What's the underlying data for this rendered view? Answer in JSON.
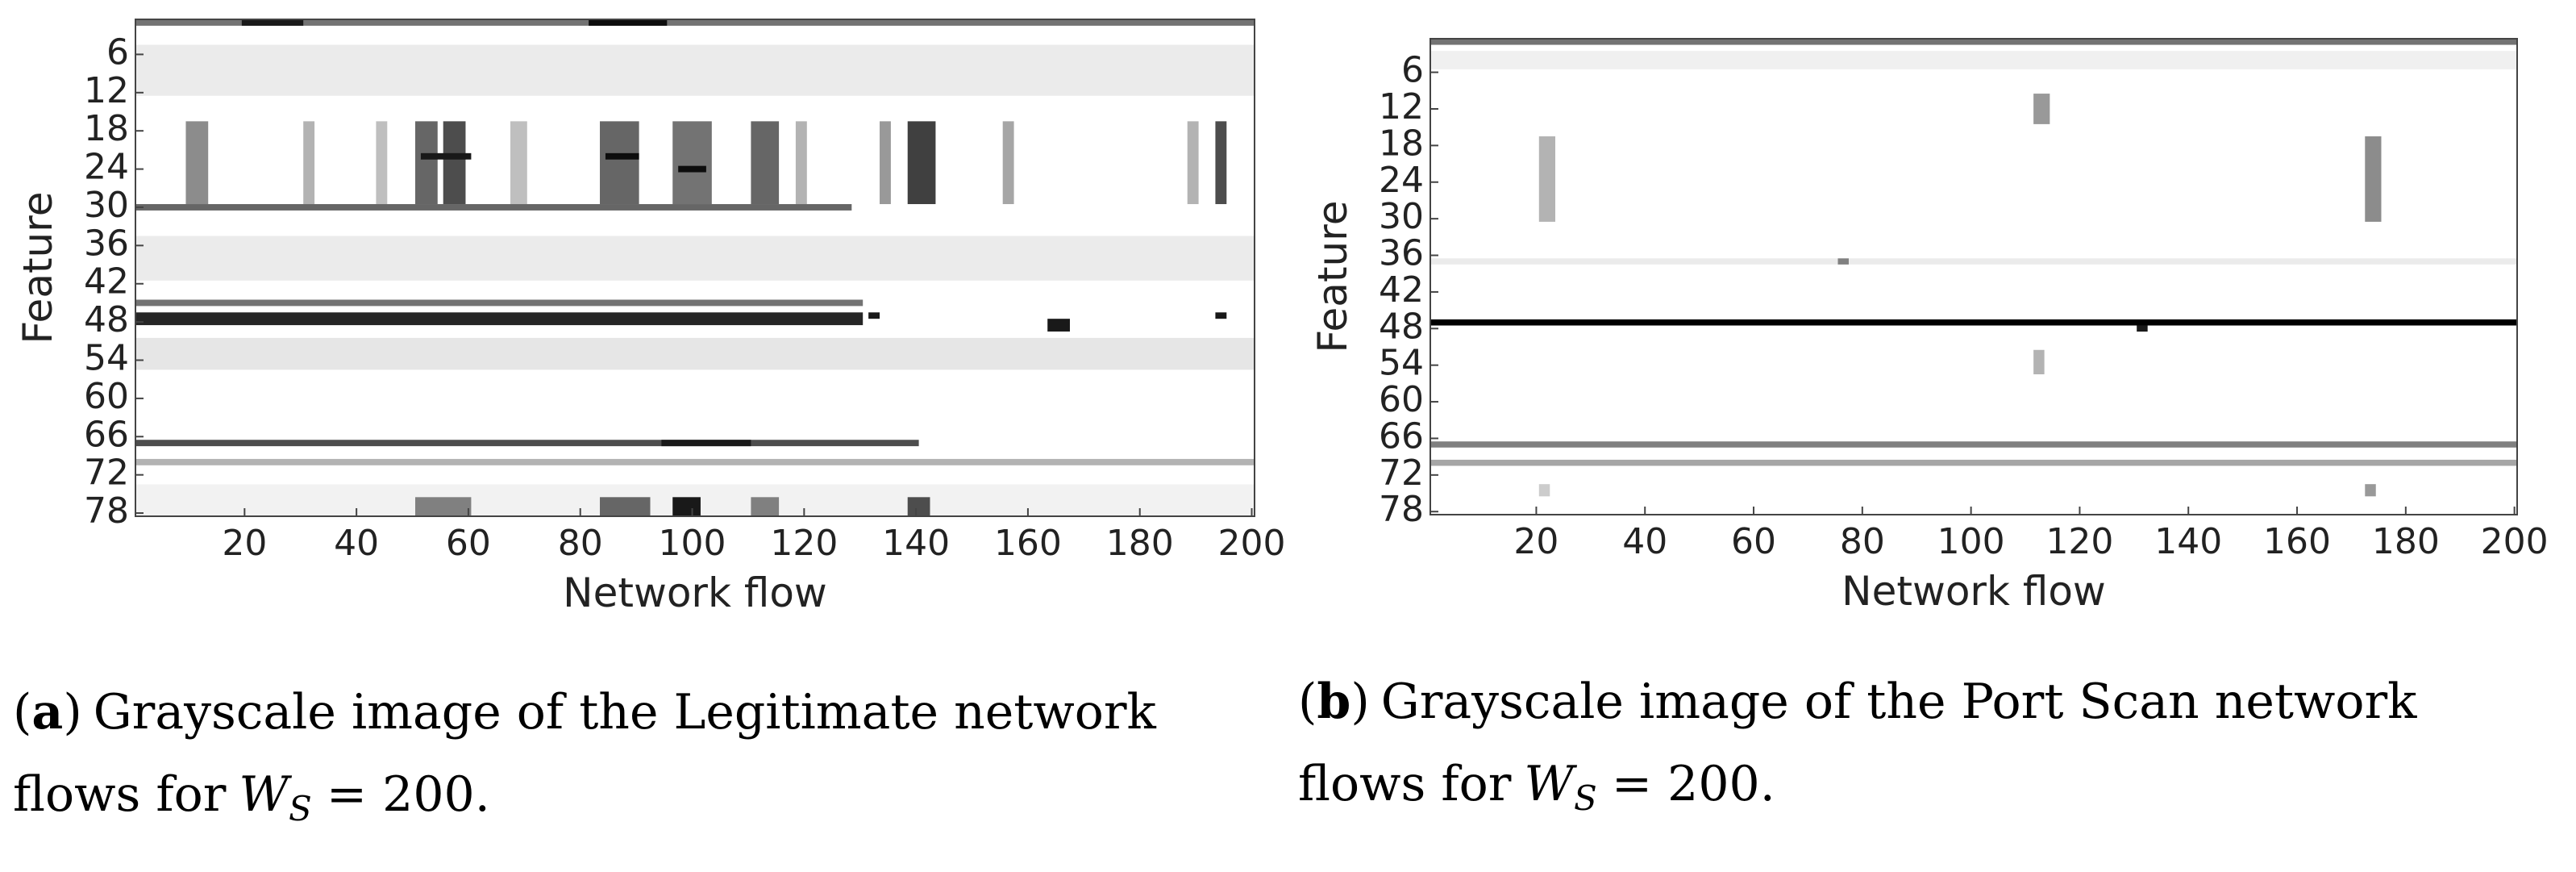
{
  "chart_data": [
    {
      "type": "heatmap",
      "xlabel": "Network flow",
      "ylabel": "Feature",
      "xlim": [
        0.5,
        200.5
      ],
      "ylim": [
        0.5,
        78.5
      ],
      "xticks": [
        20,
        40,
        60,
        80,
        100,
        120,
        140,
        160,
        180,
        200
      ],
      "yticks": [
        6,
        12,
        18,
        24,
        30,
        36,
        42,
        48,
        54,
        60,
        66,
        72,
        78
      ],
      "rects": {
        "flow_from": [
          1,
          82,
          20,
          1,
          10,
          51,
          56,
          84,
          97,
          111,
          119,
          134,
          139,
          156,
          189,
          194,
          31,
          44,
          68,
          85,
          98,
          52,
          1,
          1,
          1,
          1,
          132,
          164,
          194,
          1,
          1,
          95,
          1,
          1,
          51,
          84,
          97,
          111,
          139
        ],
        "flow_to": [
          200,
          95,
          30,
          200,
          13,
          54,
          59,
          90,
          103,
          115,
          120,
          135,
          143,
          157,
          190,
          195,
          32,
          45,
          70,
          90,
          102,
          60,
          128,
          200,
          130,
          130,
          133,
          167,
          195,
          200,
          140,
          110,
          200,
          200,
          60,
          92,
          101,
          115,
          142
        ],
        "feature_from": [
          1,
          1,
          1,
          5,
          17,
          17,
          17,
          17,
          17,
          17,
          17,
          17,
          17,
          17,
          17,
          17,
          17,
          17,
          17,
          22,
          24,
          22,
          30,
          35,
          45,
          47,
          47,
          48,
          47,
          51,
          67,
          67,
          70,
          74,
          76,
          76,
          76,
          76,
          76
        ],
        "feature_to": [
          1,
          1,
          1,
          12,
          29,
          29,
          29,
          29,
          29,
          29,
          29,
          29,
          29,
          29,
          29,
          29,
          29,
          29,
          29,
          22,
          24,
          22,
          30,
          41,
          45,
          48,
          47,
          49,
          47,
          55,
          67,
          67,
          70,
          78,
          78,
          78,
          78,
          78,
          78
        ],
        "intensity": [
          0.55,
          0.95,
          0.9,
          0.08,
          0.45,
          0.6,
          0.7,
          0.6,
          0.55,
          0.6,
          0.3,
          0.4,
          0.75,
          0.35,
          0.3,
          0.7,
          0.3,
          0.25,
          0.25,
          0.95,
          0.95,
          0.9,
          0.6,
          0.08,
          0.55,
          0.85,
          0.9,
          0.9,
          0.9,
          0.1,
          0.7,
          0.9,
          0.3,
          0.05,
          0.5,
          0.6,
          0.9,
          0.5,
          0.7
        ]
      },
      "caption_tag": [
        "(",
        "a",
        ")"
      ],
      "caption_lines": [
        "Grayscale image of the Legitimate network",
        "flows for"
      ],
      "caption_math": {
        "base": "W",
        "sub": "S",
        "rest": "= 200."
      }
    },
    {
      "type": "heatmap",
      "xlabel": "Network flow",
      "ylabel": "Feature",
      "xlim": [
        0.5,
        200.5
      ],
      "ylim": [
        0.5,
        78.5
      ],
      "xticks": [
        20,
        40,
        60,
        80,
        100,
        120,
        140,
        160,
        180,
        200
      ],
      "yticks": [
        6,
        12,
        18,
        24,
        30,
        36,
        42,
        48,
        54,
        60,
        66,
        72,
        78
      ],
      "rects": {
        "flow_from": [
          1,
          1,
          112,
          21,
          173,
          1,
          76,
          1,
          131,
          112,
          1,
          1,
          21,
          173
        ],
        "flow_to": [
          200,
          200,
          114,
          23,
          175,
          200,
          77,
          200,
          132,
          113,
          200,
          200,
          22,
          174
        ],
        "feature_from": [
          1,
          3,
          10,
          17,
          17,
          37,
          37,
          47,
          48,
          52,
          67,
          70,
          74,
          74
        ],
        "feature_to": [
          1,
          5,
          14,
          30,
          30,
          37,
          37,
          47,
          48,
          55,
          67,
          70,
          75,
          75
        ],
        "intensity": [
          0.55,
          0.06,
          0.4,
          0.3,
          0.45,
          0.08,
          0.5,
          1.0,
          0.9,
          0.3,
          0.5,
          0.35,
          0.2,
          0.4
        ]
      },
      "caption_tag": [
        "(",
        "b",
        ")"
      ],
      "caption_lines": [
        "Grayscale image of the Port Scan network",
        "flows for"
      ],
      "caption_math": {
        "base": "W",
        "sub": "S",
        "rest": "= 200."
      }
    }
  ]
}
